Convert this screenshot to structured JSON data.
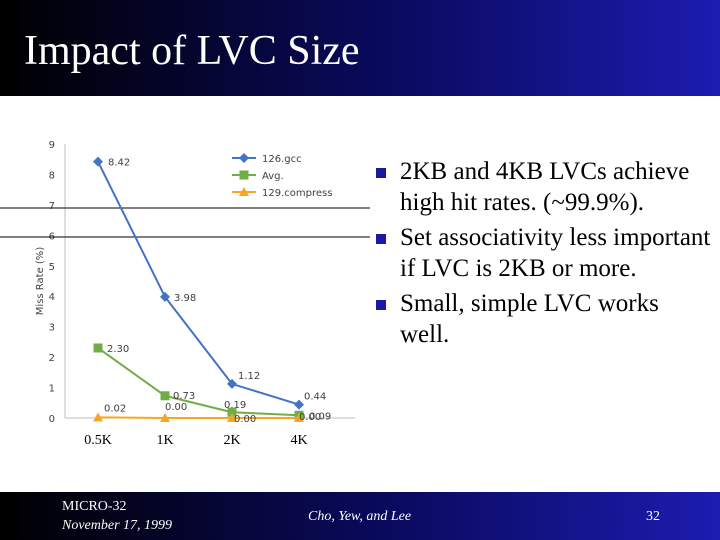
{
  "slide": {
    "title": "Impact of LVC Size",
    "bullets": [
      "2KB and 4KB LVCs achieve high hit rates. (~99.9%).",
      "Set associativity less important if LVC is 2KB or more.",
      "Small, simple LVC works well."
    ]
  },
  "footer": {
    "conference": "MICRO-32",
    "date": "November 17, 1999",
    "authors": "Cho, Yew, and Lee",
    "page_number": "32"
  },
  "colors": {
    "title_bar_start": "#000000",
    "title_bar_end": "#1c1cb0",
    "bullet_marker": "#1a1aa0"
  },
  "chart_data": {
    "type": "line",
    "categories": [
      "0.5K",
      "1K",
      "2K",
      "4K"
    ],
    "ylabel": "Miss Rate (%)",
    "ylim": [
      0,
      9
    ],
    "yticks": [
      0,
      1,
      2,
      3,
      4,
      5,
      6,
      7,
      8,
      9
    ],
    "grid": false,
    "legend_position": "top-right",
    "series": [
      {
        "name": "126.gcc",
        "color": "#4472c4",
        "marker": "diamond",
        "values": [
          8.42,
          3.98,
          1.12,
          0.44
        ],
        "labels": [
          "8.42",
          "3.98",
          "1.12",
          "0.44"
        ]
      },
      {
        "name": "Avg.",
        "color": "#70ad47",
        "marker": "square",
        "values": [
          2.3,
          0.73,
          0.19,
          0.09
        ],
        "labels": [
          "2.30",
          "0.73",
          "0.19",
          "0.09"
        ]
      },
      {
        "name": "129.compress",
        "color": "#f5a623",
        "marker": "triangle",
        "values": [
          0.02,
          0.0,
          0.0,
          0.0
        ],
        "labels": [
          "0.02",
          "0.00",
          "0.00",
          "0.00"
        ]
      }
    ]
  }
}
